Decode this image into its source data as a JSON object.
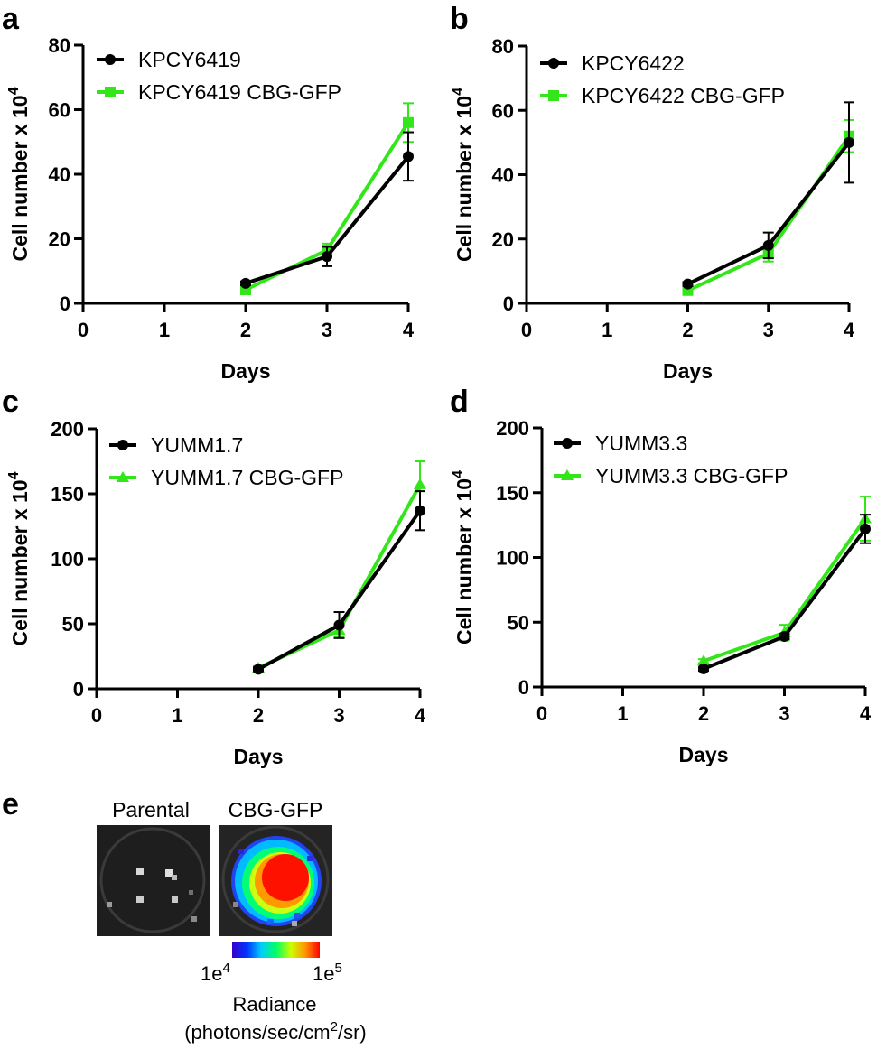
{
  "chart_data": [
    {
      "panel": "a",
      "type": "line",
      "xlabel": "Days",
      "ylabel": "Cell number x 10",
      "ylabel_exp": "4",
      "xlim": [
        0,
        4
      ],
      "ylim": [
        0,
        80
      ],
      "xticks": [
        "0",
        "1",
        "2",
        "3",
        "4"
      ],
      "yticks": [
        "0",
        "20",
        "40",
        "60",
        "80"
      ],
      "legend_position": "top-left",
      "series": [
        {
          "name": "KPCY6419",
          "color": "#000000",
          "marker": "circle",
          "x": [
            2,
            3,
            4
          ],
          "y": [
            6.2,
            14.5,
            45.5
          ],
          "err": [
            0.6,
            3.0,
            7.5
          ]
        },
        {
          "name": "KPCY6419 CBG-GFP",
          "color": "#33e61a",
          "marker": "square",
          "x": [
            2,
            3,
            4
          ],
          "y": [
            4.2,
            16.5,
            56.0
          ],
          "err": [
            0.5,
            2.0,
            6.0
          ]
        }
      ]
    },
    {
      "panel": "b",
      "type": "line",
      "xlabel": "Days",
      "ylabel": "Cell number x 10",
      "ylabel_exp": "4",
      "xlim": [
        0,
        4
      ],
      "ylim": [
        0,
        80
      ],
      "xticks": [
        "0",
        "1",
        "2",
        "3",
        "4"
      ],
      "yticks": [
        "0",
        "20",
        "40",
        "60",
        "80"
      ],
      "legend_position": "top-left",
      "series": [
        {
          "name": "KPCY6422",
          "color": "#000000",
          "marker": "circle",
          "x": [
            2,
            3,
            4
          ],
          "y": [
            6.0,
            18.0,
            50.0
          ],
          "err": [
            0.6,
            4.0,
            12.5
          ]
        },
        {
          "name": "KPCY6422 CBG-GFP",
          "color": "#33e61a",
          "marker": "square",
          "x": [
            2,
            3,
            4
          ],
          "y": [
            4.0,
            15.5,
            52.0
          ],
          "err": [
            0.5,
            2.5,
            5.0
          ]
        }
      ]
    },
    {
      "panel": "c",
      "type": "line",
      "xlabel": "Days",
      "ylabel": "Cell number x 10",
      "ylabel_exp": "4",
      "xlim": [
        0,
        4
      ],
      "ylim": [
        0,
        200
      ],
      "xticks": [
        "0",
        "1",
        "2",
        "3",
        "4"
      ],
      "yticks": [
        "0",
        "50",
        "100",
        "150",
        "200"
      ],
      "legend_position": "top-left",
      "series": [
        {
          "name": "YUMM1.7",
          "color": "#000000",
          "marker": "circle",
          "x": [
            2,
            3,
            4
          ],
          "y": [
            15,
            49,
            137
          ],
          "err": [
            1.5,
            10,
            15
          ]
        },
        {
          "name": "YUMM1.7 CBG-GFP",
          "color": "#33e61a",
          "marker": "triangle",
          "x": [
            2,
            3,
            4
          ],
          "y": [
            16,
            45,
            157
          ],
          "err": [
            1.5,
            5,
            18
          ]
        }
      ]
    },
    {
      "panel": "d",
      "type": "line",
      "xlabel": "Days",
      "ylabel": "Cell number x 10",
      "ylabel_exp": "4",
      "xlim": [
        0,
        4
      ],
      "ylim": [
        0,
        200
      ],
      "xticks": [
        "0",
        "1",
        "2",
        "3",
        "4"
      ],
      "yticks": [
        "0",
        "50",
        "100",
        "150",
        "200"
      ],
      "legend_position": "top-left",
      "series": [
        {
          "name": "YUMM3.3",
          "color": "#000000",
          "marker": "circle",
          "x": [
            2,
            3,
            4
          ],
          "y": [
            14,
            39,
            122
          ],
          "err": [
            1.5,
            2,
            11
          ]
        },
        {
          "name": "YUMM3.3 CBG-GFP",
          "color": "#33e61a",
          "marker": "triangle",
          "x": [
            2,
            3,
            4
          ],
          "y": [
            20,
            42,
            130
          ],
          "err": [
            1.5,
            6,
            17
          ]
        }
      ]
    }
  ],
  "panel_e": {
    "letter": "e",
    "left_label": "Parental",
    "right_label": "CBG-GFP",
    "colorbar": {
      "min_base": "1e",
      "min_exp": "4",
      "max_base": "1e",
      "max_exp": "5",
      "title": "Radiance",
      "units_pre": "(photons/sec/cm",
      "units_sup": "2",
      "units_post": "/sr)",
      "colors": [
        "#3300cc",
        "#0033ff",
        "#00ccff",
        "#00ff66",
        "#ccff00",
        "#ff9900",
        "#ff0000"
      ]
    }
  }
}
